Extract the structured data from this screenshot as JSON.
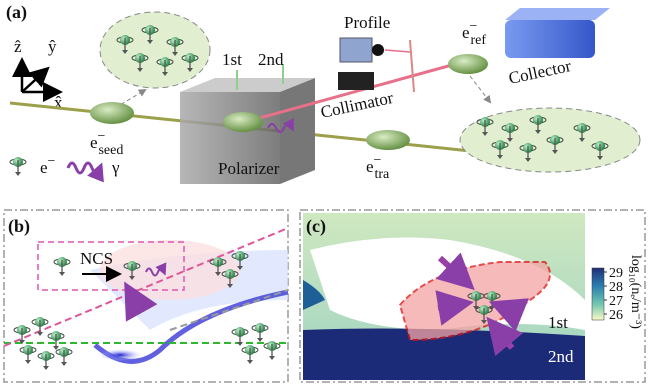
{
  "panel_a": {
    "label": "(a)",
    "axes": {
      "z": "ẑ",
      "y": "ŷ",
      "x": "x̂"
    },
    "profile": "Profile",
    "collector": "Collector",
    "collimator": "Collimator",
    "polarizer": "Polarizer",
    "first": "1st",
    "second": "2nd",
    "e_ref": {
      "base": "e",
      "sup": "−",
      "sub": "ref"
    },
    "e_seed": {
      "base": "e",
      "sup": "−",
      "sub": "seed"
    },
    "e_tra": {
      "base": "e",
      "sup": "−",
      "sub": "tra"
    },
    "legend": {
      "electron": {
        "base": "e",
        "sup": "−"
      },
      "photon": "γ"
    }
  },
  "panel_b": {
    "label": "(b)",
    "process": "NCS"
  },
  "panel_c": {
    "label": "(c)",
    "first": "1st",
    "second": "2nd",
    "colorbar": {
      "label": "log₁₀(nₑ/m⁻³)",
      "ticks": [
        29,
        28,
        27,
        26
      ]
    }
  }
}
